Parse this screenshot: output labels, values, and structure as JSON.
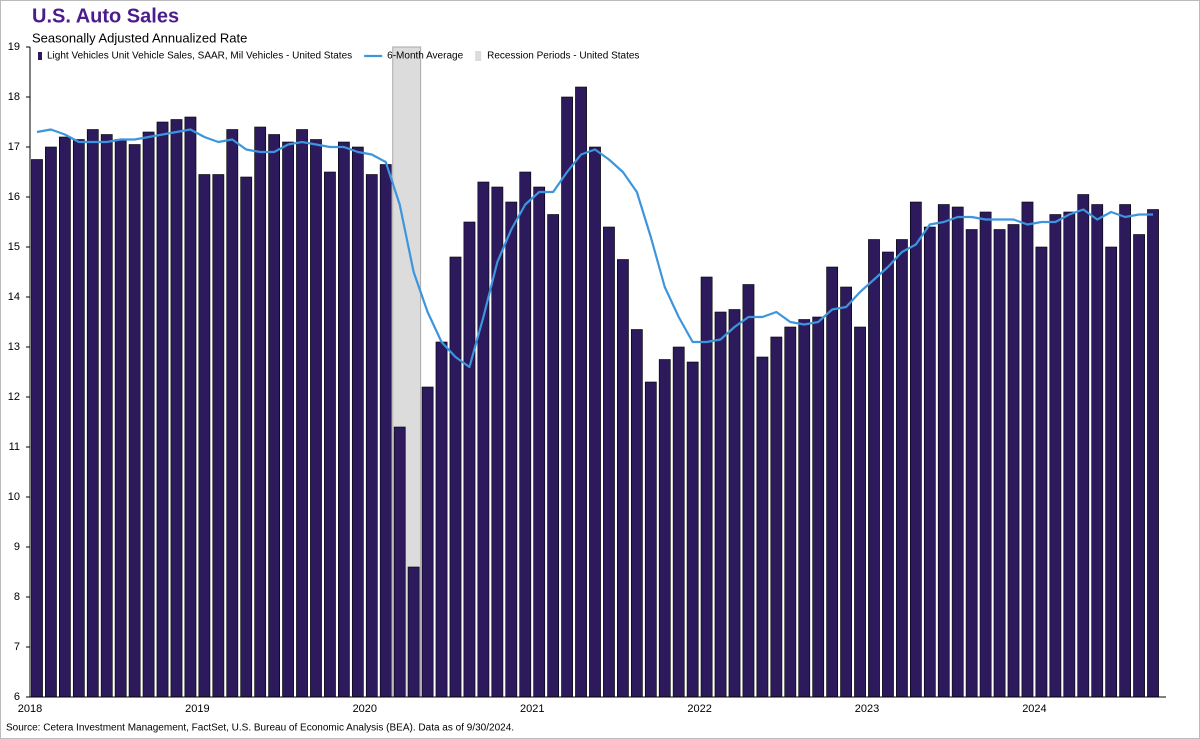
{
  "chart_data": {
    "type": "bar-line",
    "title": "U.S. Auto Sales",
    "subtitle": "Seasonally Adjusted Annualized Rate",
    "source": "Source: Cetera Investment Management, FactSet, U.S. Bureau of Economic Analysis (BEA). Data as of 9/30/2024.",
    "categories": [
      "2018",
      null,
      null,
      null,
      null,
      null,
      null,
      null,
      null,
      null,
      null,
      null,
      "2019",
      null,
      null,
      null,
      null,
      null,
      null,
      null,
      null,
      null,
      null,
      null,
      "2020",
      null,
      null,
      null,
      null,
      null,
      null,
      null,
      null,
      null,
      null,
      null,
      "2021",
      null,
      null,
      null,
      null,
      null,
      null,
      null,
      null,
      null,
      null,
      null,
      "2022",
      null,
      null,
      null,
      null,
      null,
      null,
      null,
      null,
      null,
      null,
      null,
      "2023",
      null,
      null,
      null,
      null,
      null,
      null,
      null,
      null,
      null,
      null,
      null,
      "2024",
      null,
      null,
      null,
      null,
      null,
      null,
      null,
      null
    ],
    "series": [
      {
        "name": "Light Vehicles Unit Vehicle Sales, SAAR, Mil Vehicles - United States",
        "type": "bar",
        "color": "#2c1a5c",
        "values": [
          16.75,
          17.0,
          17.2,
          17.15,
          17.35,
          17.25,
          17.15,
          17.05,
          17.3,
          17.5,
          17.55,
          17.6,
          16.45,
          16.45,
          17.35,
          16.4,
          17.4,
          17.25,
          17.1,
          17.35,
          17.15,
          16.5,
          17.1,
          17.0,
          16.45,
          16.65,
          11.4,
          8.6,
          12.2,
          13.1,
          14.8,
          15.5,
          16.3,
          16.2,
          15.9,
          16.5,
          16.2,
          15.65,
          18.0,
          18.2,
          17.0,
          15.4,
          14.75,
          13.35,
          12.3,
          12.75,
          13.0,
          12.7,
          14.4,
          13.7,
          13.75,
          14.25,
          12.8,
          13.2,
          13.4,
          13.55,
          13.6,
          14.6,
          14.2,
          13.4,
          15.15,
          14.9,
          15.15,
          15.9,
          15.4,
          15.85,
          15.8,
          15.35,
          15.7,
          15.35,
          15.45,
          15.9,
          15.0,
          15.65,
          15.7,
          16.05,
          15.85,
          15.0,
          15.85,
          15.25,
          15.75
        ]
      },
      {
        "name": "6-Month Average",
        "type": "line",
        "color": "#3d95dd",
        "values": [
          17.3,
          17.35,
          17.25,
          17.1,
          17.1,
          17.1,
          17.15,
          17.15,
          17.2,
          17.25,
          17.3,
          17.35,
          17.2,
          17.1,
          17.15,
          16.95,
          16.9,
          16.9,
          17.05,
          17.1,
          17.05,
          17.0,
          17.0,
          16.9,
          16.85,
          16.7,
          15.85,
          14.5,
          13.7,
          13.1,
          12.8,
          12.6,
          13.6,
          14.7,
          15.35,
          15.85,
          16.1,
          16.1,
          16.5,
          16.85,
          16.95,
          16.75,
          16.5,
          16.1,
          15.2,
          14.2,
          13.6,
          13.1,
          13.1,
          13.15,
          13.4,
          13.6,
          13.6,
          13.7,
          13.5,
          13.45,
          13.5,
          13.75,
          13.8,
          14.1,
          14.35,
          14.6,
          14.9,
          15.05,
          15.45,
          15.5,
          15.6,
          15.6,
          15.55,
          15.55,
          15.55,
          15.45,
          15.5,
          15.5,
          15.65,
          15.75,
          15.55,
          15.7,
          15.6,
          15.65,
          15.65
        ]
      }
    ],
    "recession": {
      "name": "Recession Periods - United States",
      "color": "#dcdcdc",
      "from_index": 26,
      "to_index": 27
    },
    "ylim": [
      6,
      19
    ],
    "yticks": [
      6,
      7,
      8,
      9,
      10,
      11,
      12,
      13,
      14,
      15,
      16,
      17,
      18,
      19
    ]
  }
}
